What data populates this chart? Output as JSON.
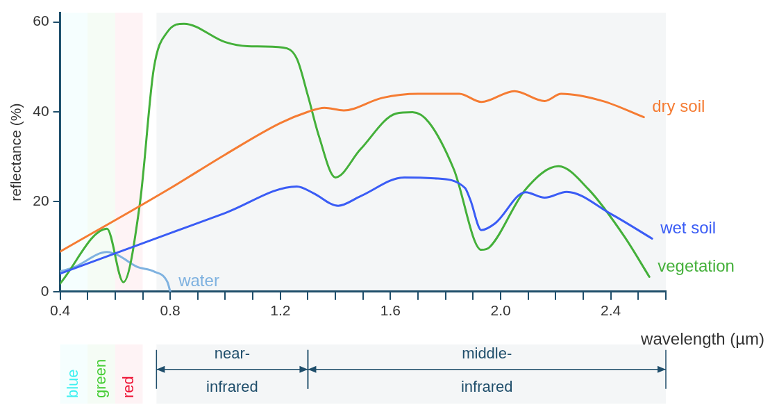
{
  "chart_data": {
    "type": "line",
    "xlabel": "wavelength (µm)",
    "ylabel": "reflectance (%)",
    "xlim": [
      0.4,
      2.6
    ],
    "ylim": [
      0,
      62
    ],
    "xticks": [
      0.4,
      {
        "value": 0.5,
        "label": null
      },
      {
        "value": 0.6,
        "label": null
      },
      {
        "value": 0.7,
        "label": null
      },
      0.8,
      {
        "value": 0.9,
        "label": null
      },
      {
        "value": 1.0,
        "label": null
      },
      {
        "value": 1.1,
        "label": null
      },
      1.2,
      {
        "value": 1.3,
        "label": null
      },
      {
        "value": 1.4,
        "label": null
      },
      {
        "value": 1.5,
        "label": null
      },
      1.6,
      {
        "value": 1.7,
        "label": null
      },
      {
        "value": 1.8,
        "label": null
      },
      {
        "value": 1.9,
        "label": null
      },
      {
        "value": 2.0,
        "label": "2.0"
      },
      {
        "value": 2.1,
        "label": null
      },
      {
        "value": 2.2,
        "label": null
      },
      {
        "value": 2.3,
        "label": null
      },
      2.4,
      {
        "value": 2.5,
        "label": null
      },
      {
        "value": 2.6,
        "label": null
      }
    ],
    "yticks": [
      0,
      20,
      40,
      60
    ],
    "grid": false,
    "legend": false,
    "marker": "none",
    "line_style": "solid",
    "series": [
      {
        "name": "dry soil",
        "color": "#f57c33",
        "x": [
          0.4,
          0.8,
          1.0,
          1.2,
          1.3,
          1.36,
          1.43,
          1.57,
          1.7,
          1.85,
          1.93,
          2.05,
          2.16,
          2.22,
          2.37,
          2.52
        ],
        "values": [
          8.9,
          23,
          30.5,
          37.5,
          40,
          40.9,
          40.3,
          43.1,
          44,
          44,
          42.2,
          44.6,
          42.4,
          44,
          42.4,
          38.8
        ]
      },
      {
        "name": "wet soil",
        "color": "#3a5cf5",
        "x": [
          0.4,
          0.8,
          1.0,
          1.26,
          1.32,
          1.41,
          1.49,
          1.65,
          1.76,
          1.87,
          1.89,
          1.93,
          1.98,
          2.09,
          2.16,
          2.24,
          2.4,
          2.55
        ],
        "values": [
          4,
          13,
          17.5,
          23.4,
          21.9,
          19.1,
          21.2,
          25.4,
          25.2,
          23.1,
          20.4,
          13.7,
          15.2,
          22.1,
          20.9,
          22.2,
          17.3,
          11.8
        ]
      },
      {
        "name": "vegetation",
        "color": "#44b03a",
        "x": [
          0.4,
          0.57,
          0.63,
          0.69,
          0.74,
          0.79,
          0.85,
          1.0,
          1.08,
          1.21,
          1.26,
          1.3,
          1.34,
          1.4,
          1.49,
          1.62,
          1.68,
          1.74,
          1.83,
          1.93,
          1.96,
          2.09,
          2.21,
          2.32,
          2.45,
          2.54
        ],
        "values": [
          1.8,
          14,
          2.1,
          19.7,
          49.5,
          57.8,
          59.6,
          55.5,
          54.6,
          54.3,
          51.8,
          43.6,
          34.6,
          25.4,
          31.6,
          39.6,
          39.9,
          37.6,
          27.2,
          9.3,
          9.9,
          22.7,
          27.9,
          22.7,
          12.2,
          3.3
        ]
      },
      {
        "name": "water",
        "color": "#7fb2e0",
        "x": [
          0.4,
          0.45,
          0.57,
          0.61,
          0.68,
          0.74,
          0.79,
          0.8
        ],
        "values": [
          4.5,
          5.4,
          8.8,
          8.1,
          5.5,
          4.5,
          2.1,
          0
        ]
      }
    ],
    "bands": [
      {
        "axis": "x",
        "from": 0.4,
        "to": 0.5,
        "label": "blue",
        "color": "#3ff0f0"
      },
      {
        "axis": "x",
        "from": 0.5,
        "to": 0.6,
        "label": "green",
        "color": "#44cc33"
      },
      {
        "axis": "x",
        "from": 0.6,
        "to": 0.7,
        "label": "red",
        "color": "#ee1133"
      },
      {
        "axis": "x",
        "from": 0.75,
        "to": 1.3,
        "label": "near-infrared",
        "color": "#1f4e6b"
      },
      {
        "axis": "x",
        "from": 1.3,
        "to": 2.6,
        "label": "middle-infrared",
        "color": "#1f4e6b"
      }
    ]
  }
}
